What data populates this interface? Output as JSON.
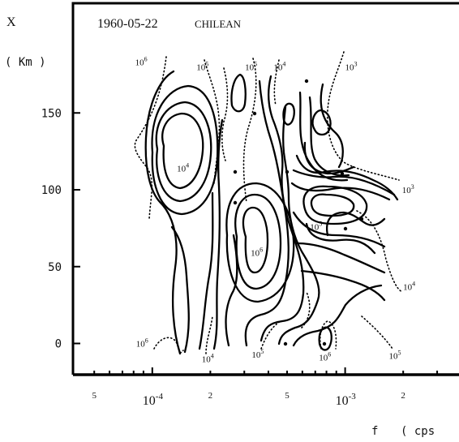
{
  "chart_data": {
    "type": "contour",
    "title": "1960-05-22",
    "subtitle": "CHILEAN",
    "ylabel": "X",
    "yunit": "( Km )",
    "xlabel": "f",
    "xunit": "( cps",
    "yscale": "linear",
    "xscale": "log",
    "ylim": [
      -20,
      195
    ],
    "xlim": [
      3e-05,
      0.0031
    ],
    "grid": false,
    "y_ticks": [
      {
        "value": 0,
        "label": "0"
      },
      {
        "value": 50,
        "label": "50"
      },
      {
        "value": 100,
        "label": "100"
      },
      {
        "value": 150,
        "label": "150"
      }
    ],
    "x_tick_labels": [
      {
        "value": 5e-05,
        "label": "5"
      },
      {
        "value": 0.0001,
        "label": "10",
        "sup": "-4"
      },
      {
        "value": 0.0002,
        "label": "2"
      },
      {
        "value": 0.0005,
        "label": "5"
      },
      {
        "value": 0.001,
        "label": "10",
        "sup": "-3"
      },
      {
        "value": 0.002,
        "label": "2"
      }
    ],
    "contour_labels": [
      {
        "base": "10",
        "exp": "6",
        "f": 8.8e-05,
        "x": 183
      },
      {
        "base": "10",
        "exp": "5",
        "f": 0.000183,
        "x": 180
      },
      {
        "base": "10",
        "exp": "5",
        "f": 0.000327,
        "x": 180
      },
      {
        "base": "10",
        "exp": "4",
        "f": 0.00046,
        "x": 180
      },
      {
        "base": "10",
        "exp": "3",
        "f": 0.00108,
        "x": 180
      },
      {
        "base": "10",
        "exp": "4",
        "f": 0.000145,
        "x": 114
      },
      {
        "base": "10",
        "exp": "3",
        "f": 0.00213,
        "x": 100
      },
      {
        "base": "10",
        "exp": "5",
        "f": 0.00071,
        "x": 76
      },
      {
        "base": "10",
        "exp": "6",
        "f": 0.00035,
        "x": 59
      },
      {
        "base": "10",
        "exp": "4",
        "f": 0.00216,
        "x": 37
      },
      {
        "base": "10",
        "exp": "6",
        "f": 8.9e-05,
        "x": 0
      },
      {
        "base": "10",
        "exp": "4",
        "f": 0.000195,
        "x": -10
      },
      {
        "base": "10",
        "exp": "5",
        "f": 0.000354,
        "x": -7
      },
      {
        "base": "10",
        "exp": "6",
        "f": 0.00079,
        "x": -9
      },
      {
        "base": "10",
        "exp": "5",
        "f": 0.00182,
        "x": -8
      }
    ],
    "legend": "none"
  }
}
